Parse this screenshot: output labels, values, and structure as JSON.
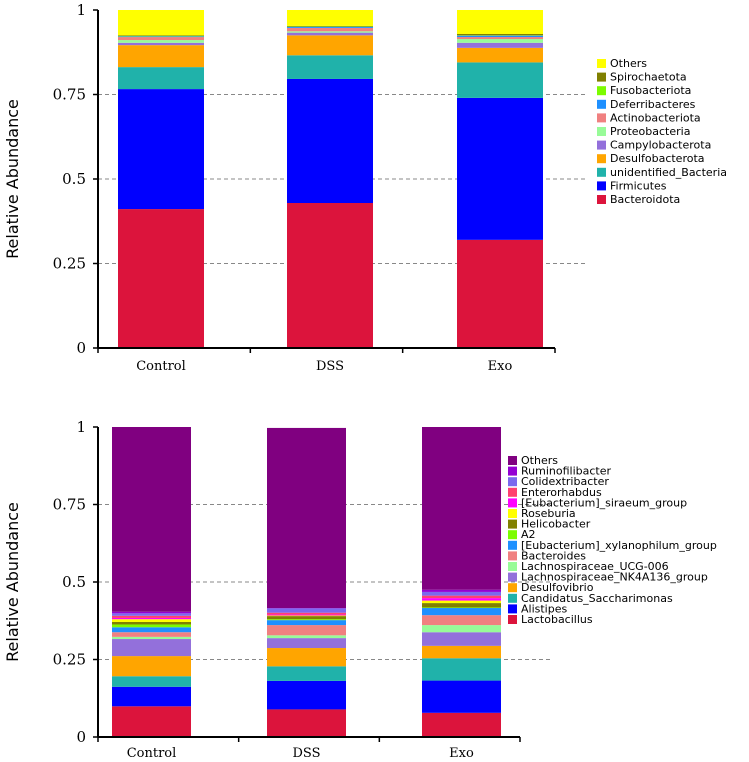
{
  "chart_data": [
    {
      "type": "bar",
      "stacked": true,
      "title": "",
      "xlabel": "",
      "ylabel": "Relative Abundance",
      "ylim": [
        0,
        1
      ],
      "yticks": [
        "0",
        "0.25",
        "0.5",
        "0.75",
        "1"
      ],
      "grid": "horizontal-dashed",
      "legend_position": "right",
      "categories": [
        "Control",
        "DSS",
        "Exo"
      ],
      "series": [
        {
          "name": "Bacteroidota",
          "color": "#DC143C",
          "values": [
            0.411,
            0.429,
            0.32
          ]
        },
        {
          "name": "Firmicutes",
          "color": "#0000FF",
          "values": [
            0.355,
            0.367,
            0.42
          ]
        },
        {
          "name": "unidentified_Bacteria",
          "color": "#20B2AA",
          "values": [
            0.065,
            0.07,
            0.105
          ]
        },
        {
          "name": "Desulfobacterota",
          "color": "#FFA500",
          "values": [
            0.065,
            0.059,
            0.043
          ]
        },
        {
          "name": "Campylobacterota",
          "color": "#9370DB",
          "values": [
            0.007,
            0.008,
            0.015
          ]
        },
        {
          "name": "Proteobacteria",
          "color": "#98FB98",
          "values": [
            0.008,
            0.004,
            0.011
          ]
        },
        {
          "name": "Actinobacteriota",
          "color": "#F08080",
          "values": [
            0.009,
            0.01,
            0.006
          ]
        },
        {
          "name": "Deferribacteres",
          "color": "#1E90FF",
          "values": [
            0.002,
            0.003,
            0.004
          ]
        },
        {
          "name": "Fusobacteriota",
          "color": "#7CFC00",
          "values": [
            0.001,
            0.001,
            0.001
          ]
        },
        {
          "name": "Spirochaetota",
          "color": "#808000",
          "values": [
            0.002,
            0.002,
            0.004
          ]
        },
        {
          "name": "Others",
          "color": "#FFFF00",
          "values": [
            0.075,
            0.047,
            0.071
          ]
        }
      ]
    },
    {
      "type": "bar",
      "stacked": true,
      "title": "",
      "xlabel": "",
      "ylabel": "Relative Abundance",
      "ylim": [
        0,
        1
      ],
      "yticks": [
        "0",
        "0.25",
        "0.5",
        "0.75",
        "1"
      ],
      "grid": "horizontal-dashed",
      "legend_position": "right",
      "categories": [
        "Control",
        "DSS",
        "Exo"
      ],
      "series": [
        {
          "name": "Lactobacillus",
          "color": "#DC143C",
          "values": [
            0.099,
            0.089,
            0.078
          ]
        },
        {
          "name": "Alistipes",
          "color": "#0000FF",
          "values": [
            0.063,
            0.092,
            0.104
          ]
        },
        {
          "name": "Candidatus_Saccharimonas",
          "color": "#20B2AA",
          "values": [
            0.034,
            0.047,
            0.072
          ]
        },
        {
          "name": "Desulfovibrio",
          "color": "#FFA500",
          "values": [
            0.065,
            0.059,
            0.04
          ]
        },
        {
          "name": "Lachnospiraceae_NK4A136_group",
          "color": "#9370DB",
          "values": [
            0.055,
            0.032,
            0.044
          ]
        },
        {
          "name": "Lachnospiraceae_UCG-006",
          "color": "#98FB98",
          "values": [
            0.007,
            0.009,
            0.023
          ]
        },
        {
          "name": "Bacteroides",
          "color": "#F08080",
          "values": [
            0.015,
            0.033,
            0.032
          ]
        },
        {
          "name": "[Eubacterium]_xylanophilum_group",
          "color": "#1E90FF",
          "values": [
            0.016,
            0.016,
            0.023
          ]
        },
        {
          "name": "A2",
          "color": "#7CFC00",
          "values": [
            0.009,
            0.003,
            0.002
          ]
        },
        {
          "name": "Helicobacter",
          "color": "#808000",
          "values": [
            0.008,
            0.01,
            0.014
          ]
        },
        {
          "name": "Roseburia",
          "color": "#FFFF00",
          "values": [
            0.009,
            0.002,
            0.008
          ]
        },
        {
          "name": "[Eubacterium]_siraeum_group",
          "color": "#FF00FF",
          "values": [
            0.004,
            0.003,
            0.008
          ]
        },
        {
          "name": "Enterorhabdus",
          "color": "#FF4070",
          "values": [
            0.007,
            0.006,
            0.008
          ]
        },
        {
          "name": "Colidextribacter",
          "color": "#7B68EE",
          "values": [
            0.008,
            0.014,
            0.012
          ]
        },
        {
          "name": "Ruminofilibacter",
          "color": "#9400D3",
          "values": [
            0.005,
            0.001,
            0.007
          ]
        },
        {
          "name": "Others",
          "color": "#800080",
          "values": [
            0.596,
            0.581,
            0.525
          ]
        }
      ]
    }
  ]
}
